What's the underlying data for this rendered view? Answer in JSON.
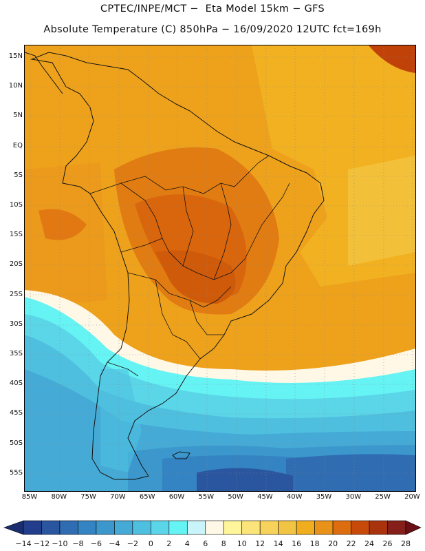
{
  "title_line1": "CPTEC/INPE/MCT −  Eta Model 15km − GFS",
  "title_line2": "Absolute Temperature (C) 850hPa − 16/09/2020 12UTC fct=169h",
  "lat_labels": [
    "15N",
    "10N",
    "5N",
    "EQ",
    "5S",
    "10S",
    "15S",
    "20S",
    "25S",
    "30S",
    "35S",
    "40S",
    "45S",
    "50S",
    "55S"
  ],
  "lon_labels": [
    "85W",
    "80W",
    "75W",
    "70W",
    "65W",
    "60W",
    "55W",
    "50W",
    "45W",
    "40W",
    "35W",
    "30W",
    "25W",
    "20W"
  ],
  "colorbar": {
    "tick_labels": [
      "−14",
      "−12",
      "−10",
      "−8",
      "−6",
      "−4",
      "−2",
      "0",
      "2",
      "4",
      "6",
      "8",
      "10",
      "12",
      "14",
      "16",
      "18",
      "20",
      "22",
      "24",
      "26",
      "28"
    ],
    "colors": [
      "#213d8c",
      "#2a56a0",
      "#2f6cb2",
      "#3483c2",
      "#3c98cc",
      "#45aad6",
      "#4fbfdf",
      "#5bd6e8",
      "#66f3f3",
      "#c8f4fa",
      "#fff8e6",
      "#fff59b",
      "#fbe47a",
      "#f7d35c",
      "#f2c443",
      "#f0ad1d",
      "#e9921a",
      "#de6d0f",
      "#c84a0b",
      "#a9330d",
      "#842019"
    ],
    "under_color": "#1a2d6e",
    "over_color": "#6b0f16"
  },
  "map": {
    "region": "South America",
    "variable": "850hPa temperature",
    "lat_range": [
      "55S",
      "15N"
    ],
    "lon_range": [
      "85W",
      "20W"
    ]
  }
}
